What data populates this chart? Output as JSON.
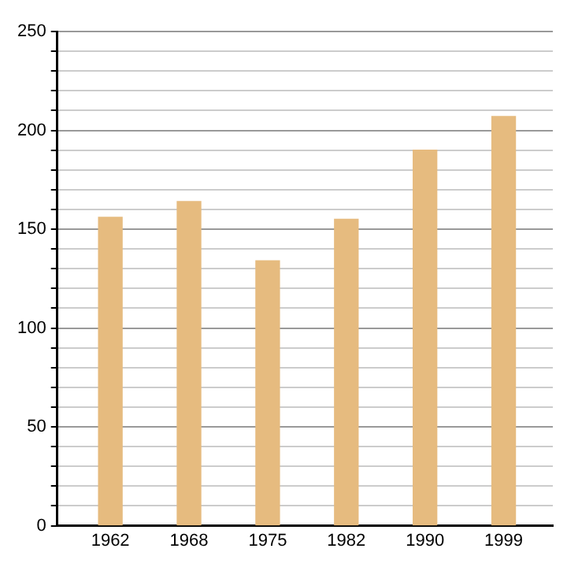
{
  "chart_data": {
    "type": "bar",
    "categories": [
      "1962",
      "1968",
      "1975",
      "1982",
      "1990",
      "1999"
    ],
    "values": [
      156,
      164,
      134,
      155,
      190,
      207
    ],
    "color": "#e6bb7f",
    "ylim": [
      0,
      250
    ],
    "yticks": [
      0,
      {
        "value": 10,
        "label": null
      },
      {
        "value": 20,
        "label": null
      },
      {
        "value": 30,
        "label": null
      },
      {
        "value": 40,
        "label": null
      },
      50,
      {
        "value": 60,
        "label": null
      },
      {
        "value": 70,
        "label": null
      },
      {
        "value": 80,
        "label": null
      },
      {
        "value": 90,
        "label": null
      },
      100,
      {
        "value": 110,
        "label": null
      },
      {
        "value": 120,
        "label": null
      },
      {
        "value": 130,
        "label": null
      },
      {
        "value": 140,
        "label": null
      },
      150,
      {
        "value": 160,
        "label": null
      },
      {
        "value": 170,
        "label": null
      },
      {
        "value": 180,
        "label": null
      },
      {
        "value": 190,
        "label": null
      },
      200,
      {
        "value": 210,
        "label": null
      },
      {
        "value": 220,
        "label": null
      },
      {
        "value": 230,
        "label": null
      },
      {
        "value": 240,
        "label": null
      },
      250
    ],
    "grid": "y"
  }
}
